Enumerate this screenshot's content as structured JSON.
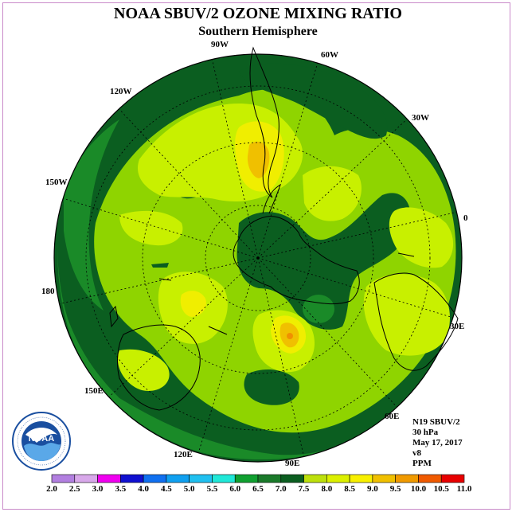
{
  "title": "NOAA SBUV/2 OZONE MIXING RATIO",
  "subtitle": "Southern Hemisphere",
  "longitude_labels": {
    "l90w": "90W",
    "l60w": "60W",
    "l30w": "30W",
    "l0": "0",
    "l30e": "30E",
    "l60e": "60E",
    "l90e": "90E",
    "l120e": "120E",
    "l150e": "150E",
    "l180": "180",
    "l150w": "150W",
    "l120w": "120W"
  },
  "info": {
    "satellite": "N19 SBUV/2",
    "level": "30 hPa",
    "date": "May 17, 2017",
    "version": "v8",
    "units": "PPM"
  },
  "logo": {
    "text": "NOAA"
  },
  "colorbar": {
    "ticks": [
      "2.0",
      "2.5",
      "3.0",
      "3.5",
      "4.0",
      "4.5",
      "5.0",
      "5.5",
      "6.0",
      "6.5",
      "7.0",
      "7.5",
      "8.0",
      "8.5",
      "9.0",
      "9.5",
      "10.0",
      "10.5",
      "11.0"
    ],
    "colors": [
      "#b27fe0",
      "#d8a8ea",
      "#f000f0",
      "#1010d0",
      "#1070f0",
      "#10a0f0",
      "#20c0f0",
      "#20e8d8",
      "#10a030",
      "#1a7a2a",
      "#0b5e20",
      "#bde00c",
      "#dcf000",
      "#f8f000",
      "#f0c000",
      "#f09a00",
      "#f05a00",
      "#e80000",
      "#8a5a3a"
    ]
  },
  "map_colors": {
    "c65": "#1a8a28",
    "c70": "#0b5e20",
    "c75": "#8fd400",
    "c80": "#c8f000",
    "c85": "#f0ee00",
    "c90": "#f0c000",
    "c95": "#f09000"
  }
}
